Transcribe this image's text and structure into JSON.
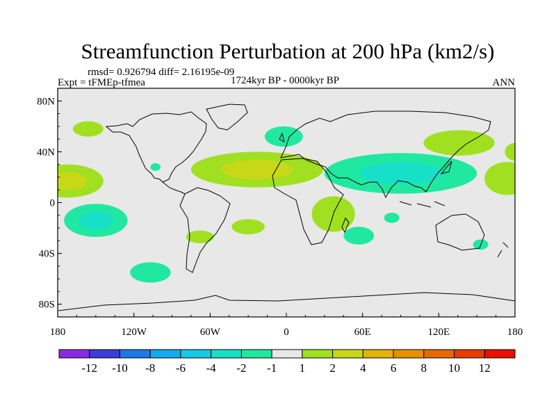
{
  "chart_data": {
    "type": "contour-map",
    "title": "Streamfunction Perturbation at 200 hPa (km2/s)",
    "stats_line": "rmsd= 0.926794 diff= 2.16195e-09",
    "left_label": "Expt = tFMEp-tfmea",
    "center_label": "1724kyr BP - 0000kyr BP",
    "right_label": "ANN",
    "x_range": [
      -180,
      180
    ],
    "y_range": [
      -90,
      90
    ],
    "x_ticks": [
      {
        "value": -180,
        "label": "180"
      },
      {
        "value": -120,
        "label": "120W"
      },
      {
        "value": -60,
        "label": "60W"
      },
      {
        "value": 0,
        "label": "0"
      },
      {
        "value": 60,
        "label": "60E"
      },
      {
        "value": 120,
        "label": "120E"
      },
      {
        "value": 180,
        "label": "180"
      }
    ],
    "y_ticks": [
      {
        "value": 80,
        "label": "80N"
      },
      {
        "value": 40,
        "label": "40N"
      },
      {
        "value": 0,
        "label": "0"
      },
      {
        "value": -40,
        "label": "40S"
      },
      {
        "value": -80,
        "label": "80S"
      }
    ],
    "colorbar": {
      "colors": [
        "#8a2be2",
        "#3c3cd8",
        "#1e78e6",
        "#14aaf0",
        "#18c8e4",
        "#18e0c8",
        "#20e8a0",
        "#e8e8e8",
        "#a0e020",
        "#c8d818",
        "#e0b408",
        "#e89000",
        "#e86800",
        "#e83c00",
        "#e81000"
      ],
      "labels": [
        "-12",
        "-10",
        "-8",
        "-6",
        "-4",
        "-2",
        "-1",
        "1",
        "2",
        "4",
        "6",
        "8",
        "10",
        "12"
      ]
    },
    "anomalies": [
      {
        "lon": -172,
        "lat": 17,
        "rlon": 28,
        "rlat": 13,
        "levels": [
          2,
          4
        ]
      },
      {
        "lon": -156,
        "lat": 58,
        "rlon": 12,
        "rlat": 6,
        "levels": [
          2
        ]
      },
      {
        "lon": -150,
        "lat": -14,
        "rlon": 25,
        "rlat": 13,
        "levels": [
          -1,
          -2
        ]
      },
      {
        "lon": -103,
        "lat": 28,
        "rlon": 4,
        "rlat": 3,
        "levels": [
          -1
        ]
      },
      {
        "lon": -68,
        "lat": -27,
        "rlon": 11,
        "rlat": 5,
        "levels": [
          2
        ]
      },
      {
        "lon": -107,
        "lat": -55,
        "rlon": 16,
        "rlat": 8,
        "levels": [
          -1
        ]
      },
      {
        "lon": -23,
        "lat": 26,
        "rlon": 52,
        "rlat": 14,
        "levels": [
          2,
          4
        ]
      },
      {
        "lon": -2,
        "lat": 52,
        "rlon": 15,
        "rlat": 8,
        "levels": [
          -1
        ]
      },
      {
        "lon": -30,
        "lat": -19,
        "rlon": 13,
        "rlat": 6,
        "levels": [
          2
        ]
      },
      {
        "lon": 37,
        "lat": -9,
        "rlon": 17,
        "rlat": 14,
        "levels": [
          2
        ]
      },
      {
        "lon": 57,
        "lat": -26,
        "rlon": 12,
        "rlat": 7,
        "levels": [
          -1
        ]
      },
      {
        "lon": 83,
        "lat": -12,
        "rlon": 6,
        "rlat": 4,
        "levels": [
          -1
        ]
      },
      {
        "lon": 90,
        "lat": 23,
        "rlon": 60,
        "rlat": 16,
        "levels": [
          -1,
          -2
        ]
      },
      {
        "lon": 136,
        "lat": 47,
        "rlon": 28,
        "rlat": 10,
        "levels": [
          2
        ]
      },
      {
        "lon": 174,
        "lat": 19,
        "rlon": 18,
        "rlat": 13,
        "levels": [
          2
        ]
      },
      {
        "lon": 180,
        "lat": 40,
        "rlon": 8,
        "rlat": 7,
        "levels": [
          2
        ]
      },
      {
        "lon": 153,
        "lat": -33,
        "rlon": 6,
        "rlat": 4,
        "levels": [
          -1
        ]
      }
    ]
  }
}
